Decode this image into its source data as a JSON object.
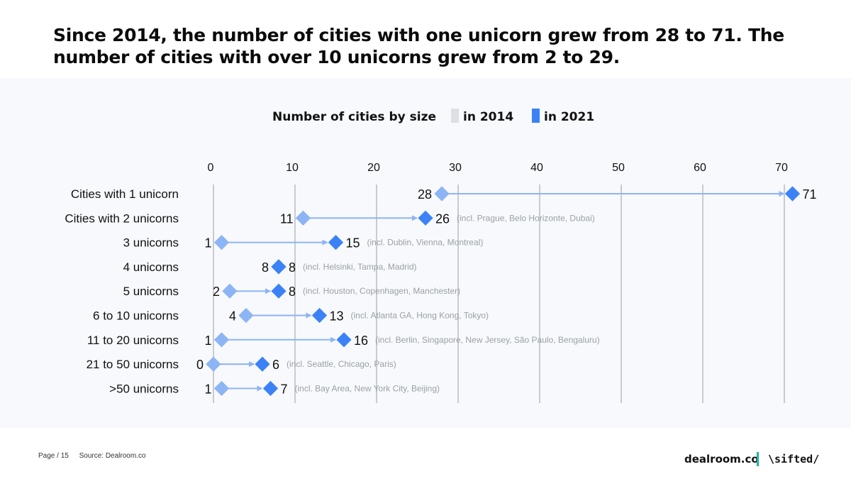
{
  "title": "Since 2014, the number of cities with one unicorn grew from 28 to 71. The number of cities with over 10 unicorns grew from 2 to 29.",
  "legend": {
    "title": "Number of cities by size",
    "items": [
      {
        "label": "in 2014",
        "color": "#dcdfe4"
      },
      {
        "label": "in 2021",
        "color": "#3b82f6"
      }
    ]
  },
  "colors": {
    "y2014": "#8db4f4",
    "y2021": "#3b82f6",
    "arrow": "#8db4f4",
    "grid": "#c8cbd0",
    "note": "#9aa0a8"
  },
  "chart_data": {
    "type": "dumbbell",
    "x_ticks": [
      0,
      10,
      20,
      30,
      40,
      50,
      60,
      70
    ],
    "xlim": [
      0,
      74
    ],
    "categories": [
      "Cities with 1 unicorn",
      "Cities with 2 unicorns",
      "3 unicorns",
      "4 unicorns",
      "5 unicorns",
      "6 to 10 unicorns",
      "11 to 20 unicorns",
      "21 to 50 unicorns",
      ">50 unicorns"
    ],
    "series": [
      {
        "name": "in 2014",
        "values": [
          28,
          11,
          1,
          8,
          2,
          4,
          1,
          0,
          1
        ]
      },
      {
        "name": "in 2021",
        "values": [
          71,
          26,
          15,
          8,
          8,
          13,
          16,
          6,
          7
        ]
      }
    ],
    "annotations": [
      "",
      "(incl. Prague, Belo Horizonte, Dubai)",
      "(incl. Dublin, Vienna, Montreal)",
      "(incl. Helsinki, Tampa, Madrid)",
      "(incl. Houston, Copenhagen, Manchester)",
      "(incl. Atlanta GA, Hong Kong, Tokyo)",
      "(incl. Berlin, Singapore, New Jersey, São Paulo, Bengaluru)",
      "(incl. Seattle, Chicago, Paris)",
      "(incl. Bay Area, New York City, Beijing)"
    ]
  },
  "footer": {
    "page": "Page / 15",
    "source": "Source: Dealroom.co",
    "brand1": "dealroom.co",
    "brand2": "\\sifted/"
  }
}
